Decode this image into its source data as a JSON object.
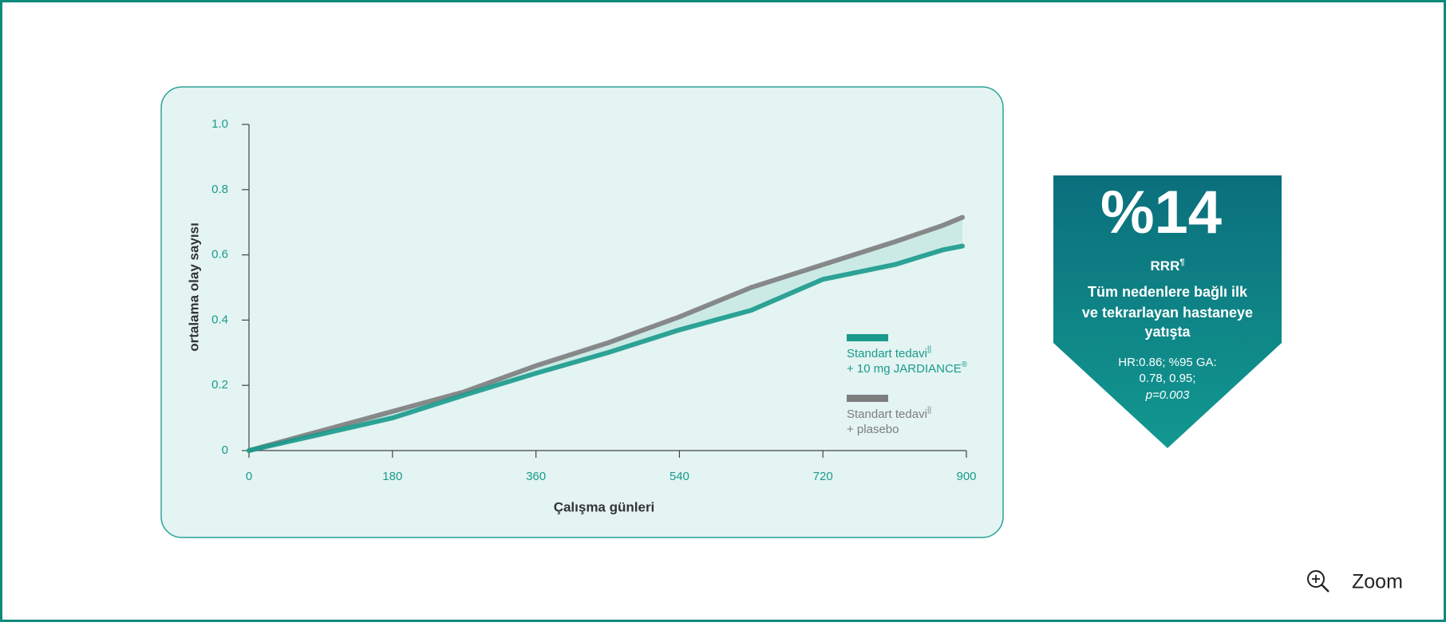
{
  "chart_data": {
    "type": "line",
    "ylabel": "ortalama olay sayısı",
    "xlabel": "Çalışma günleri",
    "x": [
      0,
      90,
      180,
      270,
      360,
      450,
      540,
      630,
      720,
      810,
      870,
      895
    ],
    "series": [
      {
        "name": "Standart tedavi",
        "name_note": "||",
        "name_line2": "+ 10 mg JARDIANCE",
        "name_line2_note": "®",
        "color": "#1a9a8c",
        "values": [
          0,
          0.05,
          0.1,
          0.17,
          0.237,
          0.3,
          0.37,
          0.43,
          0.525,
          0.57,
          0.615,
          0.627
        ]
      },
      {
        "name": "Standart tedavi",
        "name_note": "||",
        "name_line2": "+ plasebo",
        "color": "#7d7d7d",
        "values": [
          0,
          0.06,
          0.12,
          0.18,
          0.26,
          0.33,
          0.41,
          0.5,
          0.57,
          0.64,
          0.69,
          0.715
        ]
      }
    ],
    "xlim": [
      0,
      900
    ],
    "xticks": [
      0,
      180,
      360,
      540,
      720,
      900
    ],
    "ylim": [
      0,
      1
    ],
    "yticks": [
      0,
      0.2,
      0.4,
      0.6,
      0.8,
      {
        "value": 1,
        "label": "1.0"
      }
    ]
  },
  "badge": {
    "headline": "%14",
    "label": "RRR",
    "label_note": "¶",
    "description": [
      "Tüm nedenlere bağlı ilk",
      "ve tekrarlayan hastaneye",
      "yatışta"
    ],
    "stats": [
      "HR:0.86; %95 GA:",
      "0.78, 0.95;",
      "p=0.003"
    ]
  },
  "controls": {
    "zoom": "Zoom"
  }
}
